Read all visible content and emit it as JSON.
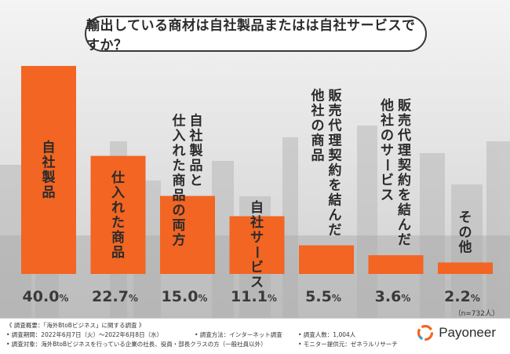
{
  "colors": {
    "bar": "#f26522",
    "label_on_bar": "#2b2b2b",
    "label_above_bar": "#2b2b2b",
    "value": "#3a3a3a"
  },
  "title": "輸出している商材は自社製品またはは自社サービスですか？",
  "chart_data": {
    "type": "bar",
    "title": "輸出している商材は自社製品またはは自社サービスですか？",
    "categories": [
      "自社製品",
      "仕入れた商品",
      "自社製品と仕入れた商品の両方",
      "自社サービス",
      "販売代理契約を結んだ他社の商品",
      "販売代理契約を結んだ他社のサービス",
      "その他"
    ],
    "values": [
      40.0,
      22.7,
      15.0,
      11.1,
      5.5,
      3.6,
      2.2
    ],
    "value_labels": [
      "40.0",
      "22.7",
      "15.0",
      "11.1",
      "5.5",
      "3.6",
      "2.2"
    ],
    "unit": "%",
    "ylim": [
      0,
      40.0
    ],
    "label_columns": [
      [
        "自社製品"
      ],
      [
        "仕入れた商品"
      ],
      [
        "自社製品と",
        "仕入れた商品の両方"
      ],
      [
        "自社サービス"
      ],
      [
        "販売代理契約を結んだ",
        "他社の商品"
      ],
      [
        "販売代理契約を結んだ",
        "他社のサービス"
      ],
      [
        "その他"
      ]
    ],
    "label_mode": [
      "inside",
      "inside",
      "above",
      "inside",
      "above",
      "above",
      "above"
    ]
  },
  "sample_note": "（n=732人）",
  "footer": {
    "overview": "《 調査概要：「海外BtoBビジネス」に関する調査 》",
    "period": "• 調査期間：2022年6月7日（火）〜2022年6月8日（水）",
    "method": "• 調査方法：インターネット調査",
    "count": "• 調査人数：1,004人",
    "target": "• 調査対象：海外BtoBビジネスを行っている企業の社長、役員・部長クラスの方（一般社員以外）",
    "provider": "• モニター提供元：ゼネラルリサーチ"
  },
  "logo": {
    "text": "Payoneer",
    "icon": "payoneer-logo-icon"
  }
}
